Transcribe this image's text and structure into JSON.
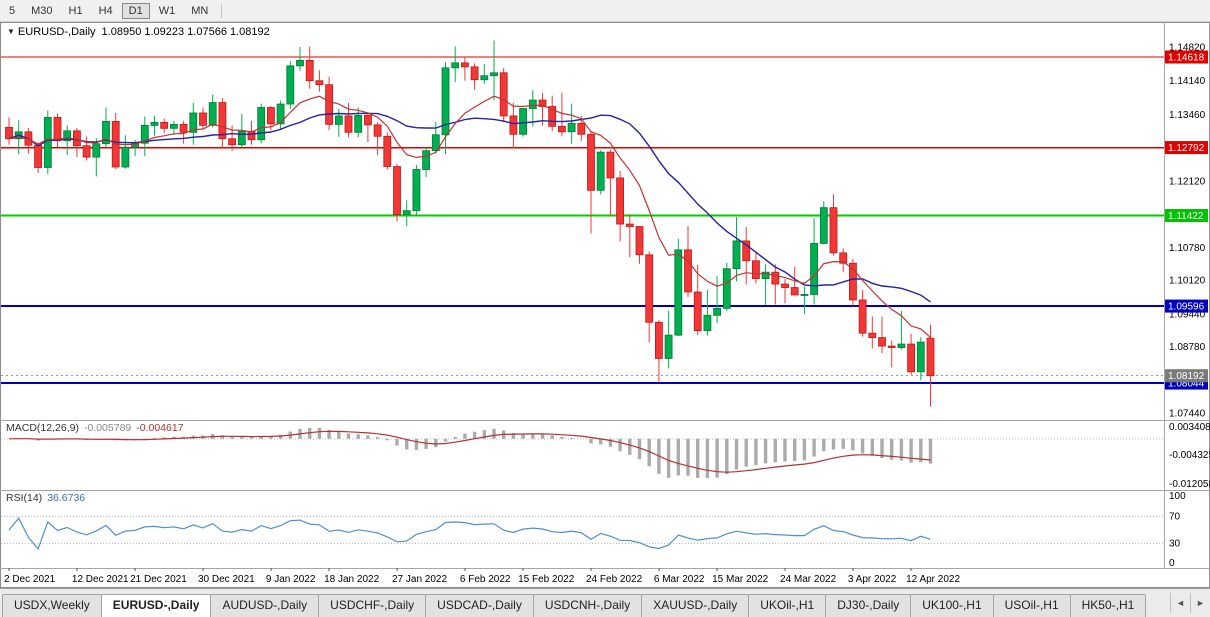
{
  "toolbar": {
    "timeframes": [
      {
        "label": "5",
        "active": false
      },
      {
        "label": "M30",
        "active": false
      },
      {
        "label": "H1",
        "active": false
      },
      {
        "label": "H4",
        "active": false
      },
      {
        "label": "D1",
        "active": true
      },
      {
        "label": "W1",
        "active": false
      },
      {
        "label": "MN",
        "active": false
      }
    ]
  },
  "chart": {
    "marker": "▼",
    "symbol": "EURUSD-,Daily",
    "ohlc": "1.08950 1.09223 1.07566 1.08192"
  },
  "indicators": {
    "macd": {
      "label": "MACD(12,26,9)",
      "main": "-0.005789",
      "signal": "-0.004617",
      "axis_labels": [
        "0.003408",
        "-0.004325",
        "-0.012058"
      ]
    },
    "rsi": {
      "label": "RSI(14)",
      "value": "36.6736",
      "axis_labels": [
        "100",
        "70",
        "30",
        "0"
      ]
    }
  },
  "chart_data": {
    "type": "candlestick",
    "symbol": "EURUSD",
    "timeframe": "Daily",
    "ylim": [
      1.0744,
      1.1482
    ],
    "price_ticks": [
      "1.14820",
      "1.14140",
      "1.13460",
      "1.12120",
      "1.10780",
      "1.10120",
      "1.09440",
      "1.08780",
      "1.07440"
    ],
    "hlines": [
      {
        "price": 1.14618,
        "color": "#e00000",
        "width": 1.4,
        "badge_bg": "#e00000"
      },
      {
        "price": 1.12792,
        "color": "#e00000",
        "width": 1.4,
        "badge_bg": "#e00000"
      },
      {
        "price": 1.11422,
        "color": "#00cc00",
        "width": 2,
        "badge_bg": "#00c400"
      },
      {
        "price": 1.09596,
        "color": "#0000be",
        "width": 2,
        "badge_bg": "#0000be"
      },
      {
        "price": 1.08044,
        "color": "#0000be",
        "width": 2,
        "badge_bg": "#0000be"
      }
    ],
    "current_price": {
      "price": 1.08192,
      "badge_bg": "#7a7a7a"
    },
    "x_axis_dates": [
      {
        "label": "2 Dec 2021",
        "i": 0
      },
      {
        "label": "12 Dec 2021",
        "i": 7
      },
      {
        "label": "21 Dec 2021",
        "i": 13
      },
      {
        "label": "30 Dec 2021",
        "i": 20
      },
      {
        "label": "9 Jan 2022",
        "i": 27
      },
      {
        "label": "18 Jan 2022",
        "i": 33
      },
      {
        "label": "27 Jan 2022",
        "i": 40
      },
      {
        "label": "6 Feb 2022",
        "i": 47
      },
      {
        "label": "15 Feb 2022",
        "i": 53
      },
      {
        "label": "24 Feb 2022",
        "i": 60
      },
      {
        "label": "6 Mar 2022",
        "i": 67
      },
      {
        "label": "15 Mar 2022",
        "i": 73
      },
      {
        "label": "24 Mar 2022",
        "i": 80
      },
      {
        "label": "3 Apr 2022",
        "i": 87
      },
      {
        "label": "12 Apr 2022",
        "i": 93
      }
    ],
    "ma_periods": {
      "fast_ema": 10,
      "slow_sma": 20
    },
    "macd_params": [
      12,
      26,
      9
    ],
    "macd_ylim": [
      -0.012058,
      0.003408
    ],
    "rsi_period": 14,
    "rsi_levels": [
      70,
      30
    ],
    "rsi_ylim": [
      0,
      100
    ],
    "colors": {
      "up": "#00b050",
      "up_stroke": "#007a35",
      "down": "#f23737",
      "down_stroke": "#c01818",
      "ma_fast": "#c03333",
      "ma_slow": "#24249c",
      "macd_hist": "#ababab",
      "macd_signal": "#b43232",
      "rsi_line": "#4f8fd0",
      "grid_dotted": "#bcbcbc"
    },
    "candles": [
      [
        1.132,
        1.134,
        1.1285,
        1.1297
      ],
      [
        1.1297,
        1.1334,
        1.1266,
        1.1311
      ],
      [
        1.1311,
        1.1319,
        1.1267,
        1.1284
      ],
      [
        1.1284,
        1.129,
        1.1228,
        1.1239
      ],
      [
        1.1239,
        1.1354,
        1.1226,
        1.134
      ],
      [
        1.134,
        1.1348,
        1.128,
        1.1293
      ],
      [
        1.1293,
        1.1324,
        1.1264,
        1.1313
      ],
      [
        1.1313,
        1.1319,
        1.126,
        1.1283
      ],
      [
        1.1283,
        1.1302,
        1.1253,
        1.126
      ],
      [
        1.126,
        1.1298,
        1.1221,
        1.1287
      ],
      [
        1.1287,
        1.136,
        1.128,
        1.1332
      ],
      [
        1.1332,
        1.1349,
        1.1236,
        1.124
      ],
      [
        1.124,
        1.1304,
        1.1237,
        1.128
      ],
      [
        1.128,
        1.1295,
        1.1262,
        1.1288
      ],
      [
        1.1288,
        1.1342,
        1.1262,
        1.1324
      ],
      [
        1.1324,
        1.1343,
        1.1303,
        1.133
      ],
      [
        1.133,
        1.1338,
        1.1308,
        1.1318
      ],
      [
        1.1318,
        1.1333,
        1.1305,
        1.1326
      ],
      [
        1.1326,
        1.1333,
        1.1287,
        1.131
      ],
      [
        1.131,
        1.1369,
        1.1285,
        1.1349
      ],
      [
        1.1349,
        1.136,
        1.1316,
        1.1324
      ],
      [
        1.1324,
        1.1386,
        1.132,
        1.137
      ],
      [
        1.137,
        1.1379,
        1.1279,
        1.1297
      ],
      [
        1.1297,
        1.1324,
        1.1272,
        1.1285
      ],
      [
        1.1285,
        1.1347,
        1.128,
        1.1312
      ],
      [
        1.1312,
        1.1333,
        1.1285,
        1.1295
      ],
      [
        1.1295,
        1.1368,
        1.1288,
        1.136
      ],
      [
        1.136,
        1.1363,
        1.1314,
        1.1327
      ],
      [
        1.1327,
        1.1374,
        1.1315,
        1.1367
      ],
      [
        1.1367,
        1.1453,
        1.1357,
        1.1444
      ],
      [
        1.1444,
        1.1482,
        1.1434,
        1.1455
      ],
      [
        1.1455,
        1.1483,
        1.1398,
        1.1414
      ],
      [
        1.1414,
        1.1435,
        1.1392,
        1.1406
      ],
      [
        1.1406,
        1.1422,
        1.1314,
        1.1326
      ],
      [
        1.1326,
        1.1357,
        1.1301,
        1.1343
      ],
      [
        1.1343,
        1.1369,
        1.13,
        1.131
      ],
      [
        1.131,
        1.136,
        1.13,
        1.1344
      ],
      [
        1.1344,
        1.1349,
        1.129,
        1.1325
      ],
      [
        1.1325,
        1.1331,
        1.1264,
        1.1302
      ],
      [
        1.1302,
        1.131,
        1.1235,
        1.1241
      ],
      [
        1.1241,
        1.1246,
        1.1131,
        1.1144
      ],
      [
        1.1144,
        1.1173,
        1.1121,
        1.1152
      ],
      [
        1.1152,
        1.1244,
        1.1141,
        1.1235
      ],
      [
        1.1235,
        1.1279,
        1.122,
        1.1273
      ],
      [
        1.1273,
        1.1331,
        1.1267,
        1.1305
      ],
      [
        1.1305,
        1.1451,
        1.1266,
        1.144
      ],
      [
        1.144,
        1.1483,
        1.1411,
        1.145
      ],
      [
        1.145,
        1.1462,
        1.1414,
        1.1442
      ],
      [
        1.1442,
        1.1449,
        1.1396,
        1.1416
      ],
      [
        1.1416,
        1.1448,
        1.1408,
        1.1424
      ],
      [
        1.1424,
        1.1495,
        1.1375,
        1.143
      ],
      [
        1.143,
        1.144,
        1.133,
        1.1343
      ],
      [
        1.1343,
        1.1369,
        1.1278,
        1.1306
      ],
      [
        1.1306,
        1.1359,
        1.1301,
        1.1358
      ],
      [
        1.1358,
        1.1395,
        1.1322,
        1.1375
      ],
      [
        1.1375,
        1.1389,
        1.1324,
        1.1362
      ],
      [
        1.1362,
        1.1384,
        1.1312,
        1.1322
      ],
      [
        1.1322,
        1.139,
        1.1302,
        1.1311
      ],
      [
        1.1311,
        1.1368,
        1.1287,
        1.1328
      ],
      [
        1.1328,
        1.1343,
        1.1293,
        1.1306
      ],
      [
        1.1306,
        1.131,
        1.1106,
        1.1193
      ],
      [
        1.1193,
        1.1274,
        1.1185,
        1.127
      ],
      [
        1.127,
        1.1274,
        1.114,
        1.1218
      ],
      [
        1.1218,
        1.1232,
        1.109,
        1.1125
      ],
      [
        1.1125,
        1.1145,
        1.1058,
        1.112
      ],
      [
        1.112,
        1.1121,
        1.1045,
        1.1063
      ],
      [
        1.1063,
        1.107,
        1.0886,
        1.0927
      ],
      [
        1.0927,
        1.0931,
        1.0806,
        1.0854
      ],
      [
        1.0854,
        1.095,
        1.0834,
        1.0901
      ],
      [
        1.0901,
        1.1095,
        1.0899,
        1.1073
      ],
      [
        1.1073,
        1.1121,
        1.0978,
        1.0988
      ],
      [
        1.0988,
        1.1043,
        1.0901,
        1.091
      ],
      [
        1.091,
        1.0992,
        1.09,
        1.0941
      ],
      [
        1.0941,
        1.102,
        1.0925,
        1.0955
      ],
      [
        1.0955,
        1.1047,
        1.095,
        1.1035
      ],
      [
        1.1035,
        1.1139,
        1.101,
        1.1091
      ],
      [
        1.1091,
        1.1119,
        1.1003,
        1.1051
      ],
      [
        1.1051,
        1.1069,
        1.1005,
        1.1015
      ],
      [
        1.1015,
        1.1045,
        1.0962,
        1.1028
      ],
      [
        1.1028,
        1.1044,
        1.0963,
        1.1004
      ],
      [
        1.1004,
        1.1014,
        1.0965,
        1.0997
      ],
      [
        1.0997,
        1.1039,
        1.0981,
        1.0982
      ],
      [
        1.0982,
        1.0999,
        1.0944,
        1.0983
      ],
      [
        1.0983,
        1.1137,
        1.0963,
        1.1086
      ],
      [
        1.1086,
        1.1171,
        1.1084,
        1.1158
      ],
      [
        1.1158,
        1.1185,
        1.1061,
        1.1067
      ],
      [
        1.1067,
        1.1076,
        1.1028,
        1.1046
      ],
      [
        1.1046,
        1.1055,
        1.096,
        1.0972
      ],
      [
        1.0972,
        1.0992,
        1.0898,
        1.0905
      ],
      [
        1.0905,
        1.0939,
        1.0874,
        1.0896
      ],
      [
        1.0896,
        1.0938,
        1.0865,
        1.0879
      ],
      [
        1.0879,
        1.089,
        1.0836,
        1.0876
      ],
      [
        1.0876,
        1.095,
        1.0872,
        1.0883
      ],
      [
        1.0883,
        1.0904,
        1.0821,
        1.0827
      ],
      [
        1.0827,
        1.0897,
        1.081,
        1.0887
      ],
      [
        1.0895,
        1.09223,
        1.07566,
        1.08192
      ]
    ]
  },
  "tabs": {
    "items": [
      {
        "label": "USDX,Weekly",
        "active": false
      },
      {
        "label": "EURUSD-,Daily",
        "active": true
      },
      {
        "label": "AUDUSD-,Daily",
        "active": false
      },
      {
        "label": "USDCHF-,Daily",
        "active": false
      },
      {
        "label": "USDCAD-,Daily",
        "active": false
      },
      {
        "label": "USDCNH-,Daily",
        "active": false
      },
      {
        "label": "XAUUSD-,Daily",
        "active": false
      },
      {
        "label": "UKOil-,H1",
        "active": false
      },
      {
        "label": "DJ30-,Daily",
        "active": false
      },
      {
        "label": "UK100-,H1",
        "active": false
      },
      {
        "label": "USOil-,H1",
        "active": false
      },
      {
        "label": "HK50-,H1",
        "active": false
      }
    ],
    "scroll_left": "◄",
    "scroll_right": "►"
  }
}
